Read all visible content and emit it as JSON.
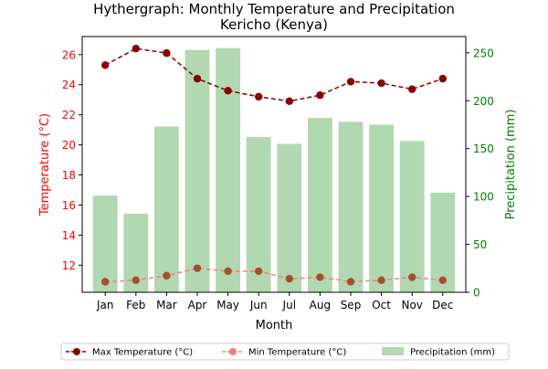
{
  "chart_data": {
    "type": "bar+line",
    "title_line1": "Hythergraph: Monthly Temperature and Precipitation",
    "title_line2": "Kericho (Kenya)",
    "xlabel": "Month",
    "ylabel_left": "Temperature (°C)",
    "ylabel_right": "Precipitation (mm)",
    "categories": [
      "Jan",
      "Feb",
      "Mar",
      "Apr",
      "May",
      "Jun",
      "Jul",
      "Aug",
      "Sep",
      "Oct",
      "Nov",
      "Dec"
    ],
    "y_left_range": [
      10.2,
      27.2
    ],
    "y_left_ticks": [
      12,
      14,
      16,
      18,
      20,
      22,
      24,
      26
    ],
    "y_right_range": [
      0,
      267
    ],
    "y_right_ticks": [
      0,
      50,
      100,
      150,
      200,
      250
    ],
    "series": [
      {
        "name": "Max Temperature (°C)",
        "axis": "left",
        "kind": "line",
        "color": "#8b0000",
        "values": [
          25.3,
          26.4,
          26.1,
          24.4,
          23.6,
          23.2,
          22.9,
          23.3,
          24.2,
          24.1,
          23.7,
          24.4
        ]
      },
      {
        "name": "Min Temperature (°C)",
        "axis": "left",
        "kind": "line",
        "color": "#f08080",
        "marker_color": "#a0522d",
        "values": [
          10.9,
          11.0,
          11.3,
          11.8,
          11.6,
          11.6,
          11.1,
          11.2,
          10.9,
          11.0,
          11.2,
          11.0
        ]
      },
      {
        "name": "Precipitation (mm)",
        "axis": "right",
        "kind": "bar",
        "color": "#b2d8b2",
        "values": [
          101,
          82,
          173,
          253,
          255,
          162,
          155,
          182,
          178,
          175,
          158,
          104
        ]
      }
    ],
    "legend_position": "bottom",
    "left_axis_color": "#ff0000",
    "right_axis_color": "#008000"
  }
}
